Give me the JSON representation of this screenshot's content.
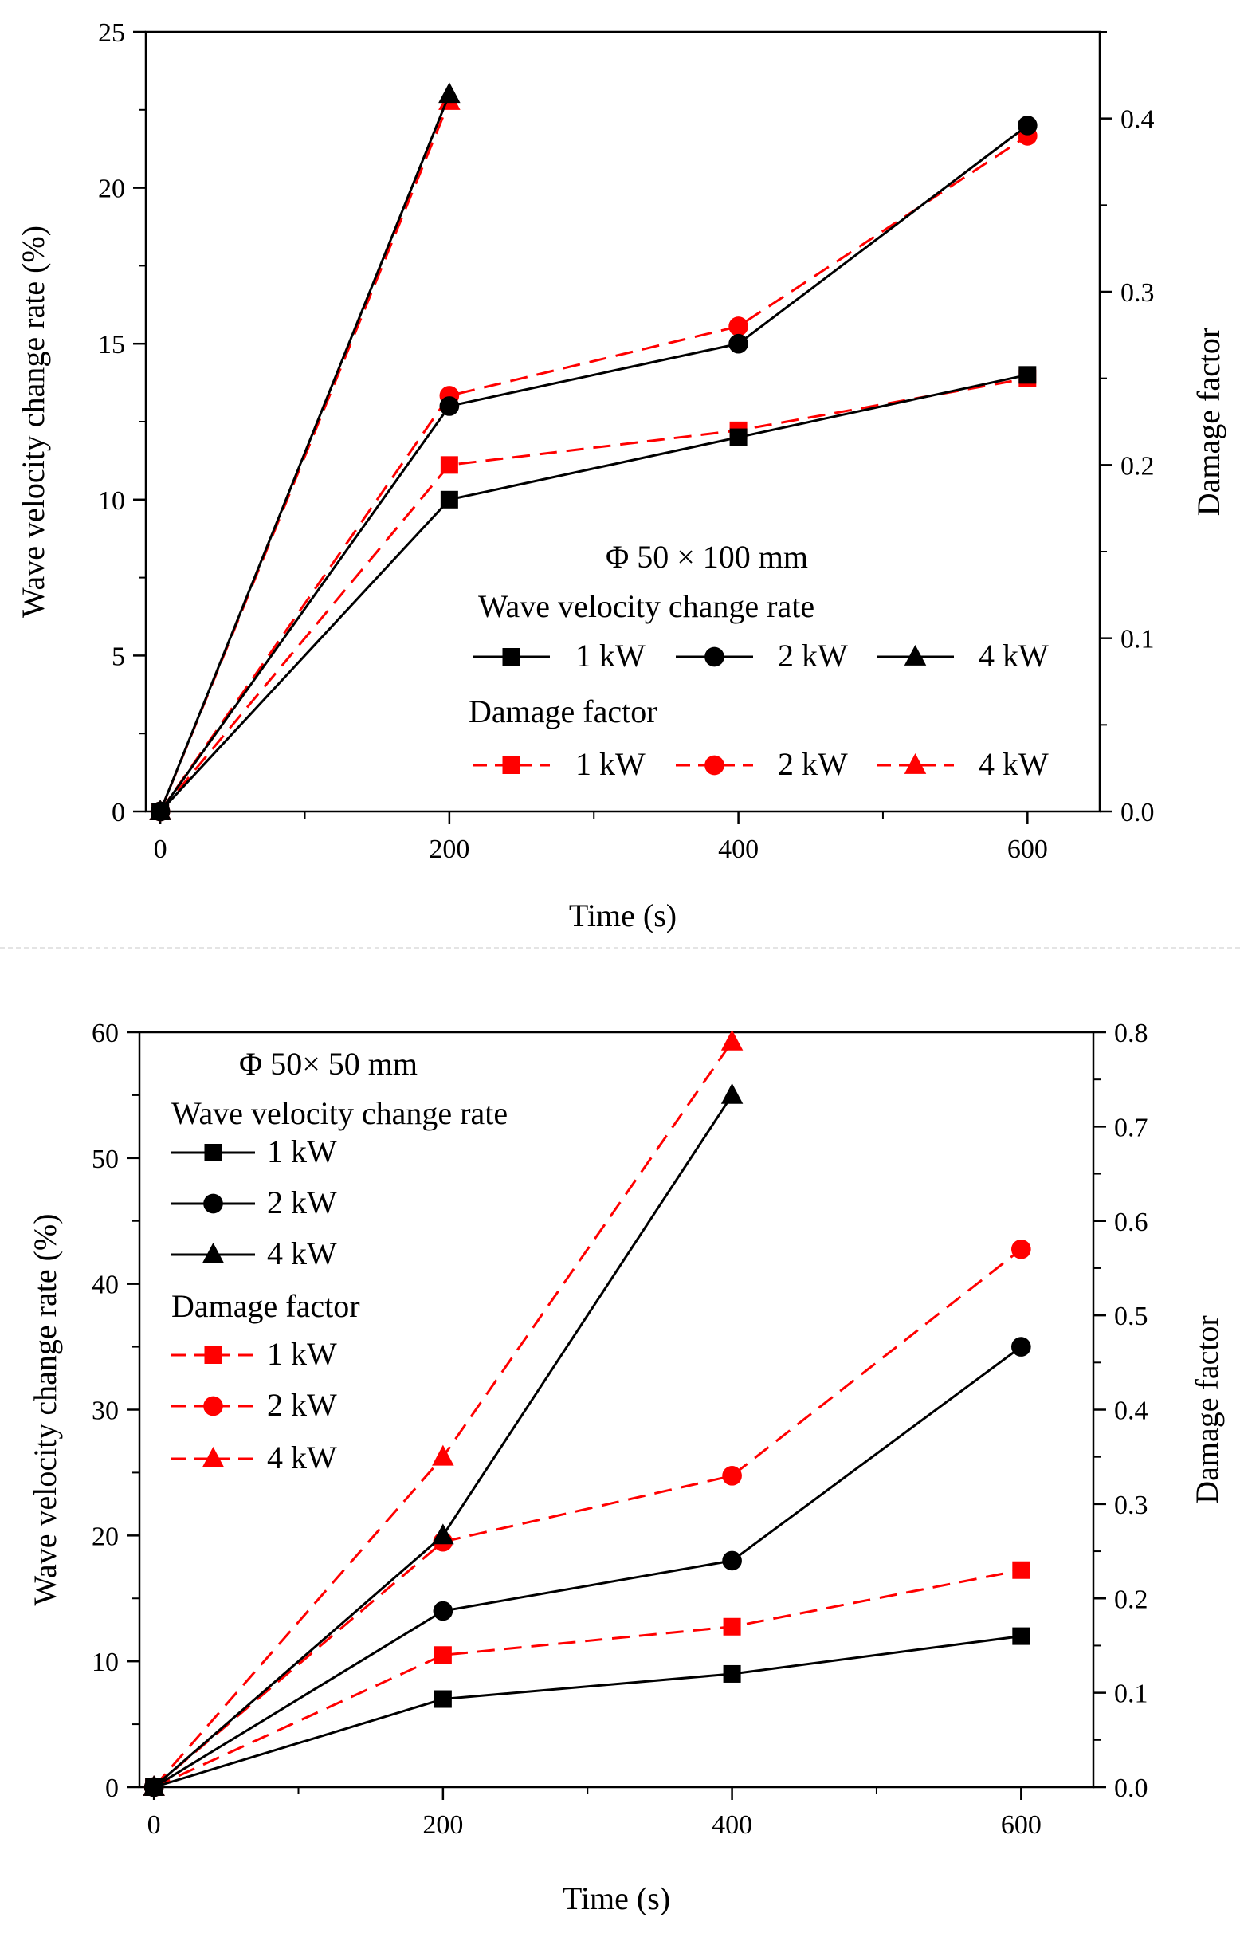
{
  "chart_data": [
    {
      "type": "line",
      "title": "Φ 50 × 100 mm",
      "xlabel": "Time (s)",
      "ylabel": "Wave velocity change rate (%)",
      "y2label": "Damage factor",
      "x_ticks": [
        "0",
        "200",
        "400",
        "600"
      ],
      "y_ticks": [
        "0",
        "5",
        "10",
        "15",
        "20",
        "25"
      ],
      "y2_ticks": [
        "0.0",
        "0.1",
        "0.2",
        "0.3",
        "0.4"
      ],
      "xlim": [
        -10,
        650
      ],
      "ylim": [
        0,
        25
      ],
      "y2lim": [
        0,
        0.45
      ],
      "legend": {
        "group1_title": "Wave velocity change rate",
        "group2_title": "Damage factor",
        "layout": "row",
        "position": "bottom-right",
        "entries": [
          "1 kW",
          "2 kW",
          "4 kW"
        ]
      },
      "series": [
        {
          "name": "1 kW",
          "group": "Wave velocity change rate",
          "axis": "left",
          "marker": "square",
          "color": "#000000",
          "dash": false,
          "x": [
            0,
            200,
            400,
            600
          ],
          "values": [
            0,
            10,
            12,
            14
          ]
        },
        {
          "name": "2 kW",
          "group": "Wave velocity change rate",
          "axis": "left",
          "marker": "circle",
          "color": "#000000",
          "dash": false,
          "x": [
            0,
            200,
            400,
            600
          ],
          "values": [
            0,
            13,
            15,
            22
          ]
        },
        {
          "name": "4 kW",
          "group": "Wave velocity change rate",
          "axis": "left",
          "marker": "triangle",
          "color": "#000000",
          "dash": false,
          "x": [
            0,
            200
          ],
          "values": [
            0,
            23
          ]
        },
        {
          "name": "1 kW",
          "group": "Damage factor",
          "axis": "right",
          "marker": "square",
          "color": "#ff0000",
          "dash": true,
          "x": [
            0,
            200,
            400,
            600
          ],
          "values": [
            0,
            0.2,
            0.22,
            0.25
          ]
        },
        {
          "name": "2 kW",
          "group": "Damage factor",
          "axis": "right",
          "marker": "circle",
          "color": "#ff0000",
          "dash": true,
          "x": [
            0,
            200,
            400,
            600
          ],
          "values": [
            0,
            0.24,
            0.28,
            0.39
          ]
        },
        {
          "name": "4 kW",
          "group": "Damage factor",
          "axis": "right",
          "marker": "triangle",
          "color": "#ff0000",
          "dash": true,
          "x": [
            0,
            200
          ],
          "values": [
            0,
            0.41
          ]
        }
      ]
    },
    {
      "type": "line",
      "title": "Φ 50× 50 mm",
      "xlabel": "Time (s)",
      "ylabel": "Wave velocity change rate (%)",
      "y2label": "Damage factor",
      "x_ticks": [
        "0",
        "200",
        "400",
        "600"
      ],
      "y_ticks": [
        "0",
        "10",
        "20",
        "30",
        "40",
        "50",
        "60"
      ],
      "y2_ticks": [
        "0.0",
        "0.1",
        "0.2",
        "0.3",
        "0.4",
        "0.5",
        "0.6",
        "0.7",
        "0.8"
      ],
      "xlim": [
        -10,
        650
      ],
      "ylim": [
        0,
        60
      ],
      "y2lim": [
        0,
        0.8
      ],
      "legend": {
        "group1_title": "Wave velocity change rate",
        "group2_title": "Damage factor",
        "layout": "column",
        "position": "top-left",
        "entries": [
          "1 kW",
          "2 kW",
          "4 kW"
        ]
      },
      "series": [
        {
          "name": "1 kW",
          "group": "Wave velocity change rate",
          "axis": "left",
          "marker": "square",
          "color": "#000000",
          "dash": false,
          "x": [
            0,
            200,
            400,
            600
          ],
          "values": [
            0,
            7,
            9,
            12
          ]
        },
        {
          "name": "2 kW",
          "group": "Wave velocity change rate",
          "axis": "left",
          "marker": "circle",
          "color": "#000000",
          "dash": false,
          "x": [
            0,
            200,
            400,
            600
          ],
          "values": [
            0,
            14,
            18,
            35
          ]
        },
        {
          "name": "4 kW",
          "group": "Wave velocity change rate",
          "axis": "left",
          "marker": "triangle",
          "color": "#000000",
          "dash": false,
          "x": [
            0,
            200,
            400
          ],
          "values": [
            0,
            20,
            55
          ]
        },
        {
          "name": "1 kW",
          "group": "Damage factor",
          "axis": "right",
          "marker": "square",
          "color": "#ff0000",
          "dash": true,
          "x": [
            0,
            200,
            400,
            600
          ],
          "values": [
            0,
            0.14,
            0.17,
            0.23
          ]
        },
        {
          "name": "2 kW",
          "group": "Damage factor",
          "axis": "right",
          "marker": "circle",
          "color": "#ff0000",
          "dash": true,
          "x": [
            0,
            200,
            400,
            600
          ],
          "values": [
            0,
            0.26,
            0.33,
            0.57
          ]
        },
        {
          "name": "4 kW",
          "group": "Damage factor",
          "axis": "right",
          "marker": "triangle",
          "color": "#ff0000",
          "dash": true,
          "x": [
            0,
            200,
            400
          ],
          "values": [
            0,
            0.35,
            0.79
          ]
        }
      ]
    }
  ]
}
